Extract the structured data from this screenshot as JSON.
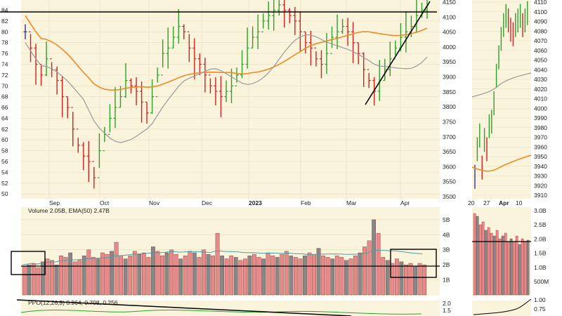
{
  "chart_data": [
    {
      "type": "ohlc",
      "panel": "main",
      "left_axis": {
        "ticks": [
          "84",
          "82",
          "80",
          "78",
          "76",
          "74",
          "72",
          "70",
          "68",
          "66",
          "64",
          "62",
          "60",
          "58",
          "56",
          "54",
          "52",
          "50"
        ],
        "range": [
          49.5,
          85.5
        ]
      },
      "right_axis": {
        "ticks": [
          "4150",
          "4100",
          "4050",
          "4000",
          "3950",
          "3900",
          "3850",
          "3800",
          "3750",
          "3700",
          "3650",
          "3600",
          "3550",
          "3500"
        ]
      },
      "x_labels": [
        "Sep",
        "Oct",
        "Nov",
        "Dec",
        "2023",
        "Feb",
        "Mar",
        "Apr"
      ],
      "price_series_left_scale": [
        80,
        77,
        74,
        72,
        75,
        73,
        71,
        68,
        66,
        62,
        59,
        57,
        56,
        53,
        58,
        61,
        64,
        66,
        68,
        71,
        70,
        69,
        67,
        65,
        68,
        72,
        76,
        77,
        79,
        81,
        80,
        77,
        75,
        74,
        72,
        70,
        69,
        68,
        69,
        70,
        72,
        74,
        77,
        79,
        80,
        82,
        83,
        84,
        85,
        84,
        83,
        82,
        80,
        78,
        77,
        75,
        74,
        76,
        79,
        80,
        81,
        80,
        78,
        76,
        73,
        71,
        69,
        71,
        73,
        75,
        77,
        79,
        80,
        81,
        83,
        84,
        85
      ],
      "colors": {
        "up": "#2ca02c",
        "down": "#cc2222",
        "neutral": "#3333aa",
        "sma_short": "#999999",
        "sma_long": "#f08a24",
        "background": "#fbf4dc"
      }
    },
    {
      "type": "ohlc",
      "panel": "inset",
      "right_axis": {
        "ticks": [
          "4110",
          "4100",
          "4090",
          "4080",
          "4070",
          "4060",
          "4050",
          "4040",
          "4030",
          "4020",
          "4010",
          "4000",
          "3990",
          "3980",
          "3970",
          "3960",
          "3950",
          "3940",
          "3930",
          "3920",
          "3910"
        ]
      },
      "x_labels": [
        "20",
        "27",
        "Apr",
        "10"
      ]
    },
    {
      "type": "bar",
      "panel": "volume",
      "title": "Volume 2.05B, EMA(50) 2.47B",
      "right_axis": {
        "ticks": [
          "5B",
          "4B",
          "3B",
          "2B",
          "1B"
        ]
      },
      "inset_axis": {
        "ticks": [
          "3.0B",
          "2.5B",
          "2.0B",
          "1.5B",
          "1.0B",
          "500M"
        ]
      },
      "values_billions": [
        1.9,
        2.0,
        2.1,
        1.8,
        2.2,
        2.4,
        2.3,
        2.0,
        2.6,
        2.5,
        2.8,
        2.2,
        2.3,
        2.6,
        3.0,
        2.5,
        2.4,
        2.8,
        2.7,
        2.9,
        3.5,
        2.6,
        2.4,
        2.6,
        2.9,
        2.7,
        2.8,
        2.5,
        3.2,
        2.9,
        2.6,
        2.8,
        3.0,
        2.7,
        2.4,
        2.6,
        2.9,
        2.8,
        2.5,
        3.0,
        2.7,
        2.6,
        4.1,
        2.6,
        2.4,
        2.6,
        2.5,
        2.3,
        2.4,
        2.6,
        2.7,
        2.5,
        2.4,
        2.8,
        2.6,
        2.5,
        2.7,
        2.9,
        2.6,
        2.5,
        2.4,
        2.6,
        2.8,
        2.7,
        3.1,
        2.6,
        2.5,
        2.4,
        2.6,
        2.5,
        2.3,
        2.4,
        2.6,
        2.8,
        3.2,
        3.6,
        5.0,
        4.1,
        2.5,
        2.3,
        2.1,
        2.4,
        2.2,
        2.0,
        2.1,
        1.9,
        2.1,
        2.0
      ]
    },
    {
      "type": "line",
      "panel": "indicator",
      "title": "PPO(12,26,9) 0.964, 0.708, 0.256",
      "right_axis": {
        "ticks": [
          "2.0",
          "1.5"
        ]
      },
      "inset_axis": {
        "ticks": [
          "1.00",
          "0.75"
        ]
      }
    }
  ]
}
